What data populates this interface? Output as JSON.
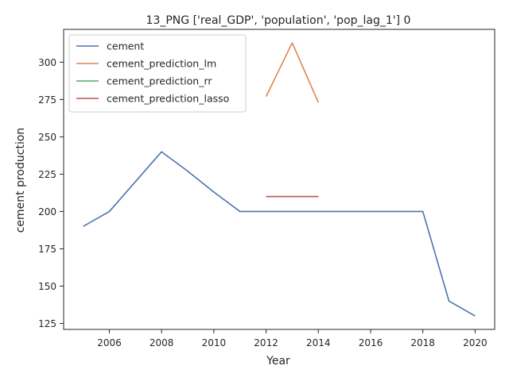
{
  "chart_data": {
    "type": "line",
    "title": "13_PNG ['real_GDP', 'population', 'pop_lag_1'] 0",
    "xlabel": "Year",
    "ylabel": "cement production",
    "xlim": [
      2004.25,
      2020.75
    ],
    "ylim": [
      121,
      322
    ],
    "x_ticks": [
      2006,
      2008,
      2010,
      2012,
      2014,
      2016,
      2018,
      2020
    ],
    "y_ticks": [
      125,
      150,
      175,
      200,
      225,
      250,
      275,
      300
    ],
    "grid": false,
    "legend_position": "upper left",
    "series": [
      {
        "name": "cement",
        "color": "#4c72b0",
        "x": [
          2005,
          2006,
          2007,
          2008,
          2009,
          2010,
          2011,
          2012,
          2013,
          2014,
          2015,
          2016,
          2017,
          2018,
          2019,
          2020
        ],
        "y": [
          190,
          200,
          220,
          240,
          227,
          213,
          200,
          200,
          200,
          200,
          200,
          200,
          200,
          200,
          140,
          130
        ]
      },
      {
        "name": "cement_prediction_lm",
        "color": "#dd8452",
        "x": [
          2012,
          2013,
          2014
        ],
        "y": [
          277,
          313,
          273
        ]
      },
      {
        "name": "cement_prediction_rr",
        "color": "#55a868",
        "x": [
          2012,
          2013,
          2014
        ],
        "y": [
          210,
          210,
          210
        ]
      },
      {
        "name": "cement_prediction_lasso",
        "color": "#c44e52",
        "x": [
          2012,
          2013,
          2014
        ],
        "y": [
          210,
          210,
          210
        ]
      }
    ]
  }
}
